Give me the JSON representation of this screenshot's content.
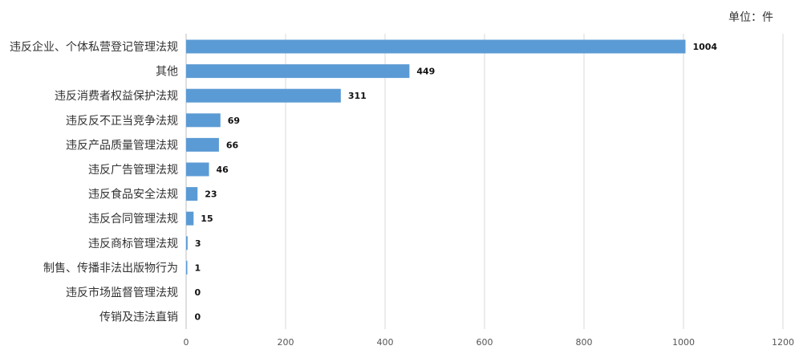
{
  "chart_data": {
    "type": "bar",
    "orientation": "horizontal",
    "unit_label": "单位：件",
    "categories": [
      "违反企业、个体私营登记管理法规",
      "其他",
      "违反消费者权益保护法规",
      "违反反不正当竞争法规",
      "违反产品质量管理法规",
      "违反广告管理法规",
      "违反食品安全法规",
      "违反合同管理法规",
      "违反商标管理法规",
      "制售、传播非法出版物行为",
      "违反市场监督管理法规",
      "传销及违法直销"
    ],
    "values": [
      1004,
      449,
      311,
      69,
      66,
      46,
      23,
      15,
      3,
      1,
      0,
      0
    ],
    "value_labels": [
      "1004",
      "449",
      "311",
      "69",
      "66",
      "46",
      "23",
      "15",
      "3",
      "1",
      "0",
      "0"
    ],
    "xlim": [
      0,
      1200
    ],
    "ticks": [
      "0",
      "200",
      "400",
      "600",
      "800",
      "1000",
      "1200"
    ],
    "tick_values": [
      0,
      200,
      400,
      600,
      800,
      1000,
      1200
    ],
    "grid": true,
    "legend": "none",
    "colors": {
      "bar": "#5B9BD5",
      "grid": "#D9D9D9",
      "axis": "#BFBFBF"
    }
  }
}
